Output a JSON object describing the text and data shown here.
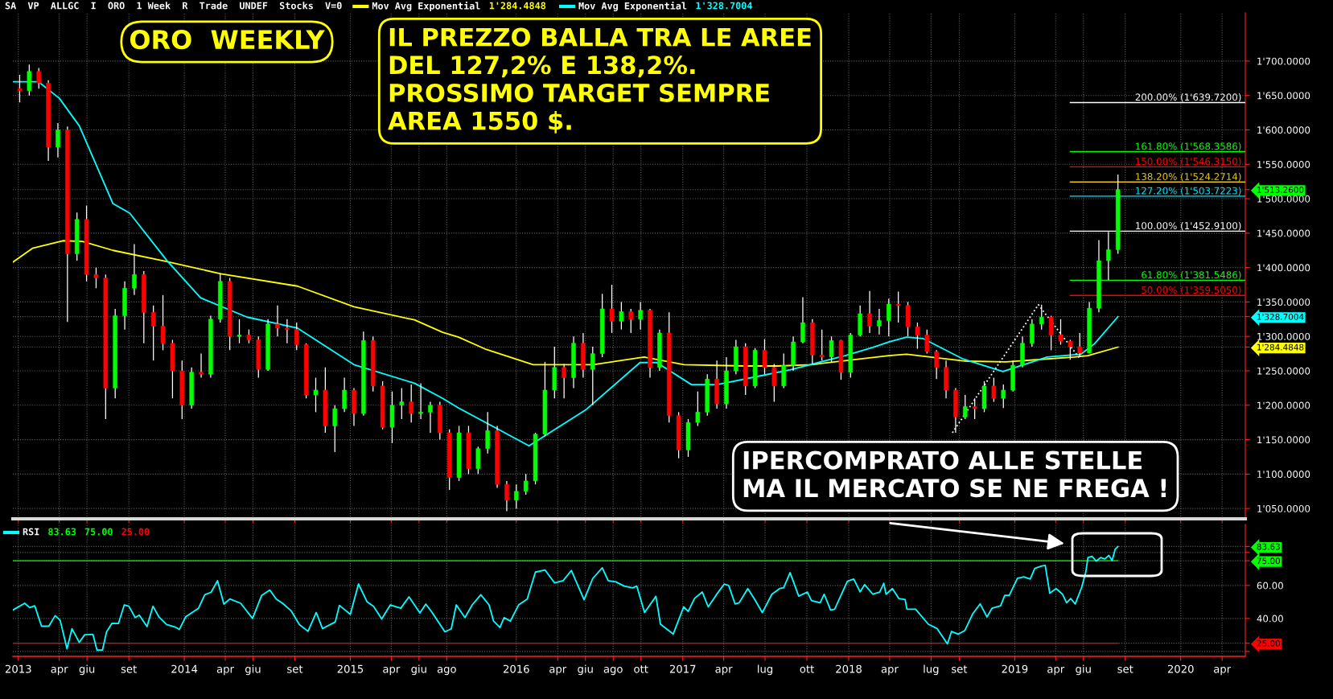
{
  "chart_data": [
    {
      "type": "candlestick",
      "title": "ORO  WEEKLY",
      "subtitle": "SA  VP  ALLGC  I  ORO  1 Week  R  Trade  UNDEF  Stocks  V=0",
      "annotations": [
        "IL PREZZO BALLA TRA LE AREE\nDEL 127,2% E 138,2%.\nPROSSIMO TARGET SEMPRE\nAREA 1550 $.",
        "IPERCOMPRATO ALLE STELLE\nMA IL MERCATO SE NE FREGA !"
      ],
      "x": [
        "2013-01-04",
        "2013-01-25",
        "2013-02-15",
        "2013-03-08",
        "2013-03-29",
        "2013-04-19",
        "2013-05-10",
        "2013-05-31",
        "2013-06-21",
        "2013-07-12",
        "2013-08-02",
        "2013-08-23",
        "2013-09-13",
        "2013-10-04",
        "2013-10-25",
        "2013-11-15",
        "2013-12-06",
        "2013-12-27",
        "2014-01-17",
        "2014-02-07",
        "2014-02-28",
        "2014-03-21",
        "2014-04-11",
        "2014-05-02",
        "2014-05-23",
        "2014-06-13",
        "2014-07-04",
        "2014-07-25",
        "2014-08-15",
        "2014-09-05",
        "2014-09-26",
        "2014-10-17",
        "2014-11-07",
        "2014-11-28",
        "2014-12-19",
        "2015-01-09",
        "2015-01-30",
        "2015-02-20",
        "2015-03-13",
        "2015-04-03",
        "2015-04-24",
        "2015-05-15",
        "2015-06-05",
        "2015-06-26",
        "2015-07-17",
        "2015-08-07",
        "2015-08-28",
        "2015-09-18",
        "2015-10-09",
        "2015-10-30",
        "2015-11-20",
        "2015-12-11",
        "2016-01-01",
        "2016-01-22",
        "2016-02-12",
        "2016-03-04",
        "2016-03-25",
        "2016-04-15",
        "2016-05-06",
        "2016-05-27",
        "2016-06-17",
        "2016-07-08",
        "2016-07-29",
        "2016-08-19",
        "2016-09-09",
        "2016-09-30",
        "2016-10-21",
        "2016-11-11",
        "2016-12-02",
        "2016-12-23",
        "2017-01-13",
        "2017-02-03",
        "2017-02-24",
        "2017-03-17",
        "2017-04-07",
        "2017-04-28",
        "2017-05-19",
        "2017-06-09",
        "2017-06-30",
        "2017-07-21",
        "2017-08-11",
        "2017-09-01",
        "2017-09-22",
        "2017-10-13",
        "2017-11-03",
        "2017-11-24",
        "2017-12-15",
        "2018-01-05",
        "2018-01-26",
        "2018-02-16",
        "2018-03-09",
        "2018-03-30",
        "2018-04-20",
        "2018-05-11",
        "2018-06-01",
        "2018-06-22",
        "2018-07-13",
        "2018-08-03",
        "2018-08-24",
        "2018-09-14",
        "2018-10-05",
        "2018-10-26",
        "2018-11-16",
        "2018-12-07",
        "2018-12-28",
        "2019-01-18",
        "2019-02-08",
        "2019-03-01",
        "2019-03-22",
        "2019-04-12",
        "2019-05-03",
        "2019-05-24",
        "2019-06-14",
        "2019-07-05",
        "2019-07-26",
        "2019-08-16"
      ],
      "ohlc": [
        [
          1660,
          1680,
          1640,
          1657
        ],
        [
          1657,
          1695,
          1650,
          1685
        ],
        [
          1685,
          1690,
          1660,
          1668
        ],
        [
          1668,
          1672,
          1555,
          1575
        ],
        [
          1575,
          1610,
          1560,
          1600
        ],
        [
          1600,
          1605,
          1321,
          1420
        ],
        [
          1420,
          1480,
          1410,
          1470
        ],
        [
          1470,
          1490,
          1380,
          1390
        ],
        [
          1390,
          1400,
          1370,
          1385
        ],
        [
          1385,
          1390,
          1180,
          1225
        ],
        [
          1225,
          1340,
          1210,
          1330
        ],
        [
          1330,
          1380,
          1310,
          1370
        ],
        [
          1370,
          1434,
          1360,
          1390
        ],
        [
          1390,
          1395,
          1290,
          1335
        ],
        [
          1335,
          1345,
          1265,
          1315
        ],
        [
          1315,
          1360,
          1280,
          1290
        ],
        [
          1290,
          1295,
          1210,
          1250
        ],
        [
          1250,
          1265,
          1180,
          1200
        ],
        [
          1200,
          1255,
          1195,
          1248
        ],
        [
          1248,
          1275,
          1240,
          1245
        ],
        [
          1245,
          1330,
          1240,
          1325
        ],
        [
          1325,
          1392,
          1320,
          1380
        ],
        [
          1380,
          1385,
          1280,
          1300
        ],
        [
          1300,
          1325,
          1290,
          1302
        ],
        [
          1302,
          1310,
          1290,
          1295
        ],
        [
          1295,
          1300,
          1240,
          1252
        ],
        [
          1252,
          1325,
          1250,
          1318
        ],
        [
          1318,
          1345,
          1300,
          1312
        ],
        [
          1312,
          1325,
          1290,
          1310
        ],
        [
          1310,
          1320,
          1280,
          1288
        ],
        [
          1288,
          1290,
          1210,
          1215
        ],
        [
          1215,
          1240,
          1190,
          1222
        ],
        [
          1222,
          1255,
          1160,
          1170
        ],
        [
          1170,
          1200,
          1132,
          1195
        ],
        [
          1195,
          1240,
          1190,
          1222
        ],
        [
          1222,
          1225,
          1170,
          1188
        ],
        [
          1188,
          1307,
          1185,
          1294
        ],
        [
          1294,
          1300,
          1220,
          1228
        ],
        [
          1228,
          1235,
          1165,
          1168
        ],
        [
          1168,
          1220,
          1145,
          1200
        ],
        [
          1200,
          1225,
          1180,
          1205
        ],
        [
          1205,
          1230,
          1175,
          1188
        ],
        [
          1188,
          1232,
          1180,
          1190
        ],
        [
          1190,
          1205,
          1160,
          1200
        ],
        [
          1200,
          1205,
          1150,
          1160
        ],
        [
          1160,
          1165,
          1077,
          1095
        ],
        [
          1095,
          1170,
          1090,
          1160
        ],
        [
          1160,
          1170,
          1100,
          1108
        ],
        [
          1108,
          1140,
          1100,
          1137
        ],
        [
          1137,
          1190,
          1130,
          1163
        ],
        [
          1163,
          1170,
          1080,
          1085
        ],
        [
          1085,
          1090,
          1046,
          1062
        ],
        [
          1062,
          1085,
          1050,
          1075
        ],
        [
          1075,
          1100,
          1070,
          1090
        ],
        [
          1090,
          1160,
          1085,
          1158
        ],
        [
          1158,
          1263,
          1155,
          1222
        ],
        [
          1222,
          1285,
          1210,
          1255
        ],
        [
          1255,
          1260,
          1210,
          1240
        ],
        [
          1240,
          1300,
          1225,
          1290
        ],
        [
          1290,
          1305,
          1240,
          1252
        ],
        [
          1252,
          1285,
          1200,
          1275
        ],
        [
          1275,
          1362,
          1270,
          1340
        ],
        [
          1340,
          1375,
          1305,
          1322
        ],
        [
          1322,
          1350,
          1310,
          1336
        ],
        [
          1336,
          1340,
          1305,
          1325
        ],
        [
          1325,
          1350,
          1310,
          1338
        ],
        [
          1338,
          1340,
          1240,
          1255
        ],
        [
          1255,
          1310,
          1250,
          1305
        ],
        [
          1305,
          1335,
          1175,
          1185
        ],
        [
          1185,
          1190,
          1123,
          1135
        ],
        [
          1135,
          1180,
          1125,
          1175
        ],
        [
          1175,
          1220,
          1170,
          1190
        ],
        [
          1190,
          1245,
          1185,
          1238
        ],
        [
          1238,
          1265,
          1195,
          1202
        ],
        [
          1202,
          1270,
          1195,
          1250
        ],
        [
          1250,
          1295,
          1245,
          1285
        ],
        [
          1285,
          1290,
          1215,
          1228
        ],
        [
          1228,
          1283,
          1225,
          1280
        ],
        [
          1280,
          1296,
          1245,
          1255
        ],
        [
          1255,
          1260,
          1205,
          1228
        ],
        [
          1228,
          1275,
          1225,
          1258
        ],
        [
          1258,
          1300,
          1250,
          1292
        ],
        [
          1292,
          1357,
          1290,
          1320
        ],
        [
          1320,
          1325,
          1260,
          1273
        ],
        [
          1273,
          1310,
          1265,
          1270
        ],
        [
          1270,
          1300,
          1262,
          1294
        ],
        [
          1294,
          1295,
          1237,
          1248
        ],
        [
          1248,
          1305,
          1240,
          1302
        ],
        [
          1302,
          1345,
          1300,
          1333
        ],
        [
          1333,
          1366,
          1305,
          1315
        ],
        [
          1315,
          1340,
          1303,
          1323
        ],
        [
          1323,
          1355,
          1300,
          1347
        ],
        [
          1347,
          1365,
          1320,
          1345
        ],
        [
          1345,
          1350,
          1300,
          1314
        ],
        [
          1314,
          1320,
          1282,
          1302
        ],
        [
          1302,
          1310,
          1275,
          1278
        ],
        [
          1278,
          1280,
          1238,
          1255
        ],
        [
          1255,
          1265,
          1210,
          1222
        ],
        [
          1222,
          1225,
          1160,
          1183
        ],
        [
          1183,
          1215,
          1180,
          1198
        ],
        [
          1198,
          1210,
          1180,
          1195
        ],
        [
          1195,
          1235,
          1190,
          1228
        ],
        [
          1228,
          1240,
          1205,
          1210
        ],
        [
          1210,
          1230,
          1196,
          1222
        ],
        [
          1222,
          1265,
          1220,
          1258
        ],
        [
          1258,
          1300,
          1255,
          1290
        ],
        [
          1290,
          1325,
          1285,
          1318
        ],
        [
          1318,
          1346,
          1310,
          1328
        ],
        [
          1328,
          1330,
          1280,
          1302
        ],
        [
          1302,
          1325,
          1288,
          1293
        ],
        [
          1293,
          1295,
          1266,
          1285
        ],
        [
          1285,
          1305,
          1270,
          1276
        ],
        [
          1276,
          1350,
          1275,
          1341
        ],
        [
          1341,
          1440,
          1335,
          1410
        ],
        [
          1410,
          1452,
          1382,
          1426
        ],
        [
          1426,
          1535,
          1420,
          1513.26
        ]
      ],
      "colors": [
        "#ff0000",
        "#00ff00",
        "#ff0000",
        "#ff0000",
        "#00ff00",
        "#ff0000",
        "#00ff00",
        "#ff0000",
        "#ff0000",
        "#ff0000",
        "#00ff00",
        "#00ff00",
        "#00ff00",
        "#ff0000",
        "#ff0000",
        "#ff0000",
        "#ff0000",
        "#ff0000",
        "#00ff00",
        "#ff0000",
        "#00ff00",
        "#00ff00",
        "#ff0000",
        "#00ff00",
        "#ff0000",
        "#ff0000",
        "#00ff00",
        "#ff0000",
        "#ff0000",
        "#ff0000",
        "#ff0000",
        "#00ff00",
        "#ff0000",
        "#00ff00",
        "#00ff00",
        "#ff0000",
        "#00ff00",
        "#ff0000",
        "#ff0000",
        "#00ff00",
        "#00ff00",
        "#ff0000",
        "#00ff00",
        "#00ff00",
        "#ff0000",
        "#ff0000",
        "#00ff00",
        "#ff0000",
        "#00ff00",
        "#00ff00",
        "#ff0000",
        "#ff0000",
        "#00ff00",
        "#00ff00",
        "#00ff00",
        "#00ff00",
        "#00ff00",
        "#ff0000",
        "#00ff00",
        "#ff0000",
        "#00ff00",
        "#00ff00",
        "#ff0000",
        "#00ff00",
        "#ff0000",
        "#00ff00",
        "#ff0000",
        "#00ff00",
        "#ff0000",
        "#ff0000",
        "#00ff00",
        "#00ff00",
        "#00ff00",
        "#ff0000",
        "#00ff00",
        "#00ff00",
        "#ff0000",
        "#00ff00",
        "#ff0000",
        "#ff0000",
        "#00ff00",
        "#00ff00",
        "#00ff00",
        "#ff0000",
        "#ff0000",
        "#00ff00",
        "#ff0000",
        "#00ff00",
        "#00ff00",
        "#ff0000",
        "#00ff00",
        "#00ff00",
        "#ff0000",
        "#ff0000",
        "#ff0000",
        "#ff0000",
        "#ff0000",
        "#ff0000",
        "#ff0000",
        "#00ff00",
        "#ff0000",
        "#00ff00",
        "#ff0000",
        "#00ff00",
        "#00ff00",
        "#00ff00",
        "#00ff00",
        "#00ff00",
        "#ff0000",
        "#ff0000",
        "#ff0000",
        "#ff0000",
        "#00ff00",
        "#00ff00",
        "#00ff00",
        "#00ff00"
      ],
      "series": [
        {
          "name": "Mov Avg Exponential",
          "type": "line",
          "color": "#ffff00",
          "x": [
            "2012-12-20",
            "2013-02-01",
            "2013-04-09",
            "2013-05-22",
            "2013-07-28",
            "2013-11-15",
            "2014-03-22",
            "2014-09-07",
            "2015-01-09",
            "2015-05-22",
            "2015-07-23",
            "2015-08-27",
            "2015-10-27",
            "2016-02-07",
            "2016-06-18",
            "2016-10-08",
            "2017-01-04",
            "2017-05-17",
            "2017-07-29",
            "2017-10-11",
            "2018-03-30",
            "2018-05-08",
            "2018-09-17",
            "2018-12-13",
            "2019-05-12",
            "2019-06-11",
            "2019-08-16"
          ],
          "values": [
            1408,
            1428,
            1439,
            1438,
            1425,
            1410,
            1391,
            1373,
            1343,
            1324,
            1306,
            1299,
            1281,
            1259,
            1259,
            1270,
            1259,
            1257,
            1257,
            1259,
            1272,
            1274,
            1264,
            1263,
            1270,
            1272,
            1284.4848
          ]
        },
        {
          "name": "Mov Avg Exponential",
          "type": "line",
          "color": "#00ffff",
          "x": [
            "2012-12-20",
            "2013-02-14",
            "2013-04-01",
            "2013-05-15",
            "2013-07-28",
            "2013-09-03",
            "2013-11-24",
            "2014-02-06",
            "2014-05-19",
            "2014-09-07",
            "2015-01-09",
            "2015-05-22",
            "2015-07-23",
            "2015-08-27",
            "2016-01-29",
            "2016-06-03",
            "2016-09-29",
            "2016-11-05",
            "2017-01-20",
            "2017-03-18",
            "2017-06-23",
            "2017-08-28",
            "2017-12-24",
            "2018-02-23",
            "2018-03-30",
            "2018-05-08",
            "2018-06-13",
            "2018-09-10",
            "2018-12-06",
            "2019-03-13",
            "2019-05-26",
            "2019-06-25",
            "2019-08-16"
          ],
          "values": [
            1670,
            1670,
            1646,
            1606,
            1493,
            1479,
            1410,
            1356,
            1328,
            1312,
            1259,
            1232,
            1210,
            1196,
            1141,
            1194,
            1262,
            1262,
            1230,
            1230,
            1243,
            1252,
            1272,
            1284,
            1292,
            1299,
            1297,
            1267,
            1249,
            1270,
            1274,
            1289,
            1328.7004
          ]
        },
        {
          "type": "line",
          "color": "#ffffff",
          "line_style": "dotted",
          "x": [
            "2018-08-17",
            "2019-02-22",
            "2019-05-24"
          ],
          "values": [
            1160,
            1346,
            1268
          ]
        }
      ],
      "xlim": [
        "2012-12-20",
        "2020-05-22"
      ],
      "ylim": [
        1035,
        1770
      ],
      "yticks": [
        {
          "value": 1050,
          "label": "1'050.0000"
        },
        {
          "value": 1100,
          "label": "1'100.0000"
        },
        {
          "value": 1150,
          "label": "1'150.0000"
        },
        {
          "value": 1200,
          "label": "1'200.0000"
        },
        {
          "value": 1250,
          "label": "1'250.0000"
        },
        {
          "value": 1300,
          "label": "1'300.0000"
        },
        {
          "value": 1350,
          "label": "1'350.0000"
        },
        {
          "value": 1400,
          "label": "1'400.0000"
        },
        {
          "value": 1450,
          "label": "1'450.0000"
        },
        {
          "value": 1500,
          "label": "1'500.0000"
        },
        {
          "value": 1550,
          "label": "1'550.0000"
        },
        {
          "value": 1600,
          "label": "1'600.0000"
        },
        {
          "value": 1650,
          "label": "1'650.0000"
        },
        {
          "value": 1700,
          "label": "1'700.0000"
        },
        {
          "value": 1284.4848,
          "label": "1'284.4848"
        },
        {
          "value": 1328.7004,
          "label": "1'328.7004"
        },
        {
          "value": 1513.26,
          "label": "1'513.2600"
        }
      ],
      "tick_labels": "y",
      "grid": true,
      "legend": "top",
      "ref_lines": [
        {
          "axis": "y",
          "value": 1639.72,
          "label": "200.00% (1'639.7200)",
          "color": "#ffffff"
        },
        {
          "axis": "y",
          "value": 1568.3586,
          "label": "161.80% (1'568.3586)",
          "color": "#00ff00"
        },
        {
          "axis": "y",
          "value": 1546.315,
          "label": "150.00% (1'546.3150)",
          "color": "#ff0000"
        },
        {
          "axis": "y",
          "value": 1524.2714,
          "label": "138.20% (1'524.2714)",
          "color": "#e8c800"
        },
        {
          "axis": "y",
          "value": 1503.7223,
          "label": "127.20% (1'503.7223)",
          "color": "#00e5ff"
        },
        {
          "axis": "y",
          "value": 1452.91,
          "label": "100.00% (1'452.9100)",
          "color": "#ffffff"
        },
        {
          "axis": "y",
          "value": 1381.5486,
          "label": "61.80% (1'381.5486)",
          "color": "#00ff00"
        },
        {
          "axis": "y",
          "value": 1359.505,
          "label": "50.00% (1'359.5050)",
          "color": "#ff0000"
        }
      ]
    },
    {
      "type": "line",
      "series": [
        {
          "name": "RSI",
          "color": "#00ffff",
          "x": [
            "2012-12-20",
            "2013-01-15",
            "2013-01-26",
            "2013-02-06",
            "2013-02-21",
            "2013-03-09",
            "2013-03-23",
            "2013-04-03",
            "2013-04-18",
            "2013-04-29",
            "2013-05-15",
            "2013-05-27",
            "2013-06-14",
            "2013-06-23",
            "2013-07-05",
            "2013-07-14",
            "2013-07-26",
            "2013-08-09",
            "2013-08-22",
            "2013-09-01",
            "2013-09-15",
            "2013-09-24",
            "2013-10-11",
            "2013-10-24",
            "2013-11-06",
            "2013-11-23",
            "2013-12-12",
            "2013-12-21",
            "2014-01-04",
            "2014-02-01",
            "2014-02-15",
            "2014-03-01",
            "2014-03-15",
            "2014-03-29",
            "2014-04-11",
            "2014-05-05",
            "2014-05-31",
            "2014-06-20",
            "2014-07-08",
            "2014-07-22",
            "2014-08-05",
            "2014-08-24",
            "2014-09-11",
            "2014-09-30",
            "2014-10-18",
            "2014-11-01",
            "2014-11-29",
            "2014-12-08",
            "2015-01-01",
            "2015-01-19",
            "2015-02-07",
            "2015-02-21",
            "2015-03-11",
            "2015-03-30",
            "2015-04-22",
            "2015-05-10",
            "2015-06-03",
            "2015-06-16",
            "2015-06-30",
            "2015-07-28",
            "2015-08-11",
            "2015-08-22",
            "2015-09-10",
            "2015-09-26",
            "2015-10-15",
            "2015-11-02",
            "2015-11-12",
            "2015-11-26",
            "2015-12-05",
            "2015-12-19",
            "2016-01-06",
            "2016-01-25",
            "2016-02-12",
            "2016-03-04",
            "2016-03-25",
            "2016-04-13",
            "2016-05-01",
            "2016-05-29",
            "2016-06-17",
            "2016-07-08",
            "2016-07-21",
            "2016-08-07",
            "2016-08-25",
            "2016-09-13",
            "2016-09-22",
            "2016-10-09",
            "2016-11-03",
            "2016-11-13",
            "2016-12-11",
            "2017-01-03",
            "2017-01-13",
            "2017-01-27",
            "2017-02-13",
            "2017-02-26",
            "2017-03-15",
            "2017-04-02",
            "2017-04-12",
            "2017-04-26",
            "2017-05-05",
            "2017-05-24",
            "2017-06-07",
            "2017-06-25",
            "2017-07-16",
            "2017-08-02",
            "2017-08-11",
            "2017-08-25",
            "2017-09-13",
            "2017-10-02",
            "2017-10-11",
            "2017-10-30",
            "2017-11-08",
            "2017-11-22",
            "2017-12-01",
            "2017-12-29",
            "2018-01-12",
            "2018-01-26",
            "2018-02-05",
            "2018-02-23",
            "2018-03-10",
            "2018-03-19",
            "2018-03-24",
            "2018-04-07",
            "2018-04-21",
            "2018-05-05",
            "2018-05-09",
            "2018-05-28",
            "2018-06-25",
            "2018-07-14",
            "2018-08-06",
            "2018-08-15",
            "2018-08-30",
            "2018-09-13",
            "2018-10-01",
            "2018-10-17",
            "2018-11-01",
            "2018-11-12",
            "2018-12-01",
            "2018-12-10",
            "2018-12-20",
            "2019-01-07",
            "2019-01-21",
            "2019-02-04",
            "2019-02-14",
            "2019-02-28",
            "2019-03-09",
            "2019-03-19",
            "2019-04-02",
            "2019-04-16",
            "2019-04-25",
            "2019-05-04",
            "2019-05-14",
            "2019-05-28",
            "2019-06-06",
            "2019-06-11",
            "2019-06-20",
            "2019-06-29",
            "2019-07-09",
            "2019-07-18",
            "2019-07-27",
            "2019-08-03",
            "2019-08-10",
            "2019-08-16"
          ],
          "values": [
            45.1,
            49.2,
            46.6,
            47.7,
            35.3,
            35.3,
            41.7,
            38.9,
            21.6,
            33.8,
            25.5,
            30.1,
            30.4,
            20.8,
            20.8,
            31.9,
            37.1,
            36.9,
            48.2,
            47.4,
            40.5,
            42.0,
            35.0,
            47.4,
            41.0,
            36.3,
            34.8,
            33.3,
            41.0,
            46.1,
            54.4,
            55.9,
            62.9,
            48.7,
            51.8,
            49.2,
            40.0,
            53.9,
            57.2,
            51.8,
            49.2,
            44.6,
            36.3,
            32.2,
            43.6,
            33.8,
            37.9,
            47.9,
            42.5,
            60.9,
            50.0,
            47.4,
            39.7,
            48.2,
            46.2,
            53.1,
            43.3,
            48.7,
            43.6,
            31.9,
            33.7,
            48.2,
            40.5,
            48.2,
            54.4,
            48.2,
            38.4,
            34.5,
            40.5,
            38.4,
            48.2,
            51.8,
            68.1,
            69.4,
            61.6,
            62.9,
            69.1,
            51.3,
            64.2,
            70.7,
            62.9,
            62.2,
            59.6,
            58.5,
            59.6,
            43.6,
            53.4,
            36.5,
            30.5,
            47.0,
            44.3,
            52.2,
            56.0,
            47.0,
            54.0,
            60.8,
            60.0,
            48.8,
            49.5,
            58.1,
            52.1,
            43.5,
            54.7,
            58.1,
            58.7,
            67.8,
            53.5,
            56.0,
            50.8,
            49.5,
            54.7,
            45.1,
            45.6,
            62.6,
            63.9,
            56.1,
            60.5,
            54.7,
            56.0,
            61.3,
            54.7,
            58.1,
            52.1,
            51.4,
            45.6,
            45.6,
            36.5,
            33.9,
            24.6,
            32.1,
            30.5,
            32.6,
            43.0,
            48.8,
            40.9,
            46.2,
            47.7,
            54.0,
            54.0,
            64.4,
            65.2,
            63.9,
            70.4,
            71.7,
            72.2,
            55.3,
            58.1,
            54.7,
            49.5,
            52.1,
            48.8,
            58.7,
            67.8,
            76.9,
            77.7,
            74.8,
            76.9,
            76.1,
            78.2,
            75.1,
            82.1,
            83.63
          ]
        }
      ],
      "xlim": [
        "2012-12-20",
        "2020-05-22"
      ],
      "ylim": [
        17,
        97
      ],
      "yticks": [
        {
          "value": 20,
          "label": null
        },
        {
          "value": 40,
          "label": "40.00"
        },
        {
          "value": 60,
          "label": "60.00"
        },
        {
          "value": 80,
          "label": null
        },
        {
          "value": 25,
          "label": "25.00"
        },
        {
          "value": 75,
          "label": "75.00"
        },
        {
          "value": 83.63,
          "label": "83.63"
        }
      ],
      "xticks": [
        {
          "value": "2013-01-01",
          "label": "2013"
        },
        {
          "value": "2013-04-01",
          "label": "apr"
        },
        {
          "value": "2013-06-01",
          "label": "giu"
        },
        {
          "value": "2013-09-01",
          "label": "set"
        },
        {
          "value": "2014-01-01",
          "label": "2014"
        },
        {
          "value": "2014-04-01",
          "label": "apr"
        },
        {
          "value": "2014-06-01",
          "label": "giu"
        },
        {
          "value": "2014-09-01",
          "label": "set"
        },
        {
          "value": "2015-01-01",
          "label": "2015"
        },
        {
          "value": "2015-04-01",
          "label": "apr"
        },
        {
          "value": "2015-06-01",
          "label": "giu"
        },
        {
          "value": "2015-08-01",
          "label": "ago"
        },
        {
          "value": "2016-01-01",
          "label": "2016"
        },
        {
          "value": "2016-04-01",
          "label": "apr"
        },
        {
          "value": "2016-06-01",
          "label": "giu"
        },
        {
          "value": "2016-08-01",
          "label": "ago"
        },
        {
          "value": "2016-10-01",
          "label": "ott"
        },
        {
          "value": "2017-01-01",
          "label": "2017"
        },
        {
          "value": "2017-04-01",
          "label": "apr"
        },
        {
          "value": "2017-07-01",
          "label": "lug"
        },
        {
          "value": "2017-10-01",
          "label": "ott"
        },
        {
          "value": "2018-01-01",
          "label": "2018"
        },
        {
          "value": "2018-04-01",
          "label": "apr"
        },
        {
          "value": "2018-07-01",
          "label": "lug"
        },
        {
          "value": "2018-09-01",
          "label": "set"
        },
        {
          "value": "2019-01-01",
          "label": "2019"
        },
        {
          "value": "2019-04-01",
          "label": "apr"
        },
        {
          "value": "2019-06-01",
          "label": "giu"
        },
        {
          "value": "2019-09-01",
          "label": "set"
        },
        {
          "value": "2020-01-01",
          "label": "2020"
        },
        {
          "value": "2020-04-01",
          "label": "apr"
        }
      ],
      "grid": true,
      "legend": "top left",
      "ref_lines": [
        {
          "axis": "y",
          "value": 75,
          "color": "#00ff00"
        },
        {
          "axis": "y",
          "value": 25,
          "color": "#ff0000"
        }
      ]
    }
  ]
}
